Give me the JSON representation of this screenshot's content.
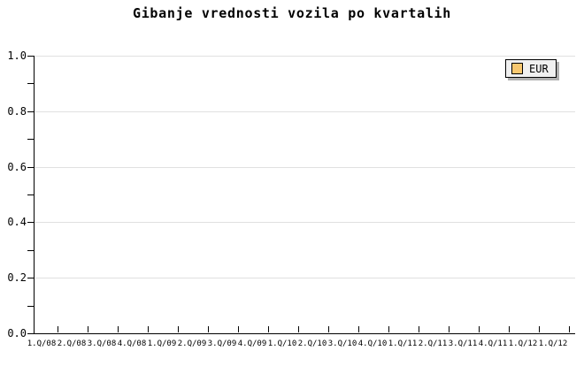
{
  "chart_data": {
    "type": "line",
    "title": "Gibanje vrednosti vozila po kvartalih",
    "categories": [
      "1.Q/08",
      "2.Q/08",
      "3.Q/08",
      "4.Q/08",
      "1.Q/09",
      "2.Q/09",
      "3.Q/09",
      "4.Q/09",
      "1.Q/10",
      "2.Q/10",
      "3.Q/10",
      "4.Q/10",
      "1.Q/11",
      "2.Q/11",
      "3.Q/11",
      "4.Q/11",
      "1.Q/12",
      "1.Q/12"
    ],
    "series": [
      {
        "name": "EUR",
        "color": "#f8c870",
        "values": []
      }
    ],
    "note": "plot area is empty - no data points are drawn for the EUR series",
    "xlabel": "",
    "ylabel": "",
    "ylim": [
      0.0,
      1.0
    ],
    "y_major_tick_values": [
      0.0,
      0.2,
      0.4,
      0.6,
      0.8,
      1.0
    ],
    "y_tick_labels": [
      "0.0",
      "0.2",
      "0.4",
      "0.6",
      "0.8",
      "1.0"
    ],
    "y_minor_tick_step": 0.1,
    "grid": "horizontal gridlines at major y ticks only",
    "legend_position": "top-right"
  },
  "legend": {
    "items": [
      {
        "label": "EUR",
        "swatch_color": "#f8c870"
      }
    ]
  },
  "colors": {
    "background": "#ffffff",
    "axis": "#000000",
    "text": "#000000",
    "grid": "#e0e0e0",
    "legend_bg": "#f0f0f0",
    "legend_border": "#000000",
    "legend_shadow": "#b0b0b0",
    "eur_swatch": "#f8c870"
  }
}
